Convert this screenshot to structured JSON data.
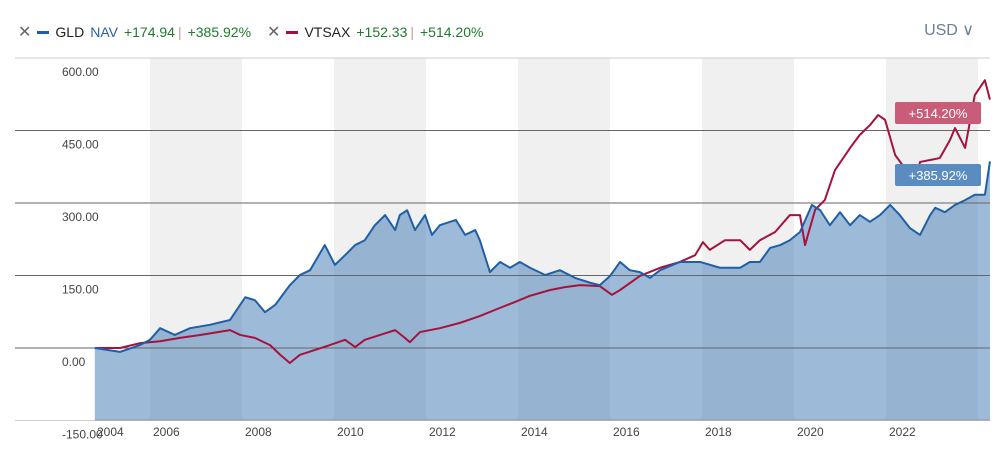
{
  "legend": [
    {
      "name": "GLD",
      "extra": "NAV",
      "change": "+174.94",
      "pct": "+385.92%",
      "color": "#1f5fa8"
    },
    {
      "name": "VTSAX",
      "extra": "",
      "change": "+152.33",
      "pct": "+514.20%",
      "color": "#a5123e"
    }
  ],
  "currency": "USD ∨",
  "chart_data": {
    "type": "line",
    "xlabel": "",
    "ylabel": "",
    "ylim": [
      -150,
      600
    ],
    "xlim": [
      2004.8,
      2024.26
    ],
    "yticks": [
      "600.00",
      "450.00",
      "300.00",
      "150.00",
      "0.00",
      "-150.00"
    ],
    "ytick_values": [
      600,
      450,
      300,
      150,
      0,
      -150
    ],
    "xticks": [
      "2004",
      "2006",
      "2008",
      "2010",
      "2012",
      "2014",
      "2016",
      "2018",
      "2020",
      "2022"
    ],
    "xtick_values": [
      2004,
      2006,
      2008,
      2010,
      2012,
      2014,
      2016,
      2018,
      2020,
      2022
    ],
    "shaded_bands": [
      [
        2006,
        2008
      ],
      [
        2010,
        2012
      ],
      [
        2014,
        2016
      ],
      [
        2018,
        2020
      ],
      [
        2022,
        2024
      ]
    ],
    "end_labels": [
      "+514.20%",
      "+385.92%"
    ],
    "series": [
      {
        "name": "GLD",
        "color": "#1f5fa8",
        "area": true,
        "x": [
          2004.8,
          2005.35,
          2005.78,
          2006,
          2006.22,
          2006.54,
          2006.87,
          2007.3,
          2007.74,
          2008.07,
          2008.28,
          2008.5,
          2008.72,
          2009.04,
          2009.26,
          2009.48,
          2009.8,
          2010.02,
          2010.24,
          2010.46,
          2010.67,
          2010.89,
          2011.11,
          2011.33,
          2011.43,
          2011.59,
          2011.76,
          2011.98,
          2012.13,
          2012.3,
          2012.65,
          2012.85,
          2013.07,
          2013.17,
          2013.39,
          2013.61,
          2013.83,
          2014.04,
          2014.26,
          2014.59,
          2014.91,
          2015.24,
          2015.57,
          2015.78,
          2016,
          2016.22,
          2016.43,
          2016.65,
          2016.87,
          2017.09,
          2017.52,
          2017.96,
          2018.39,
          2018.83,
          2019.04,
          2019.26,
          2019.48,
          2019.7,
          2019.91,
          2020.13,
          2020.39,
          2020.57,
          2020.78,
          2021,
          2021.22,
          2021.43,
          2021.65,
          2021.87,
          2022.09,
          2022.3,
          2022.52,
          2022.74,
          2022.96,
          2023.07,
          2023.28,
          2023.5,
          2023.72,
          2023.93,
          2024.15,
          2024.26
        ],
        "y": [
          0,
          -8,
          6,
          17,
          41,
          27,
          41,
          48,
          58,
          105,
          99,
          74,
          89,
          130,
          151,
          161,
          213,
          172,
          192,
          213,
          223,
          254,
          275,
          244,
          275,
          285,
          244,
          275,
          234,
          254,
          265,
          234,
          244,
          223,
          157,
          178,
          166,
          178,
          166,
          151,
          161,
          145,
          135,
          130,
          149,
          178,
          161,
          157,
          145,
          161,
          178,
          178,
          166,
          166,
          178,
          178,
          207,
          213,
          223,
          240,
          296,
          285,
          254,
          281,
          254,
          275,
          261,
          275,
          296,
          275,
          248,
          234,
          275,
          290,
          281,
          296,
          306,
          317,
          317,
          386
        ]
      },
      {
        "name": "VTSAX",
        "color": "#a5123e",
        "area": false,
        "x": [
          2004.8,
          2005.35,
          2005.78,
          2006.22,
          2006.65,
          2007.09,
          2007.74,
          2007.96,
          2008.28,
          2008.61,
          2008.83,
          2009.04,
          2009.26,
          2009.59,
          2009.91,
          2010.24,
          2010.46,
          2010.67,
          2011,
          2011.33,
          2011.54,
          2011.65,
          2011.87,
          2012.3,
          2012.74,
          2013.17,
          2013.61,
          2013.93,
          2014.26,
          2014.7,
          2015.02,
          2015.35,
          2015.78,
          2016.04,
          2016.22,
          2016.65,
          2017.09,
          2017.52,
          2017.85,
          2018.02,
          2018.17,
          2018.5,
          2018.83,
          2019.04,
          2019.26,
          2019.59,
          2019.91,
          2020.13,
          2020.24,
          2020.46,
          2020.67,
          2020.89,
          2021.22,
          2021.43,
          2021.65,
          2021.83,
          2021.98,
          2022.2,
          2022.41,
          2022.63,
          2022.74,
          2022.96,
          2023.17,
          2023.39,
          2023.5,
          2023.72,
          2023.93,
          2024.15,
          2024.26
        ],
        "y": [
          0,
          0,
          10,
          14,
          21,
          27,
          37,
          27,
          21,
          6,
          -14,
          -31,
          -14,
          -4,
          6,
          17,
          2,
          17,
          27,
          37,
          21,
          12,
          33,
          41,
          52,
          66,
          83,
          95,
          108,
          120,
          126,
          130,
          128,
          110,
          120,
          149,
          166,
          178,
          192,
          219,
          203,
          223,
          223,
          203,
          223,
          240,
          275,
          275,
          213,
          286,
          306,
          368,
          414,
          441,
          461,
          482,
          472,
          399,
          372,
          337,
          385,
          389,
          393,
          430,
          455,
          414,
          523,
          554,
          514
        ]
      }
    ]
  }
}
